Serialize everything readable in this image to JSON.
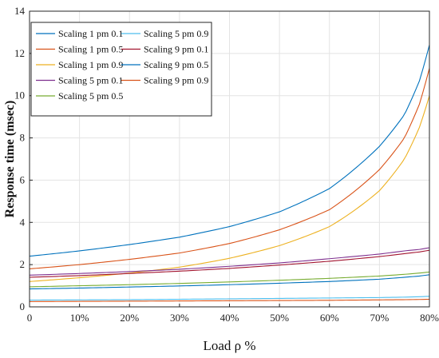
{
  "chart_data": {
    "type": "line",
    "xlabel": "Load ρ %",
    "ylabel": "Response time (msec)",
    "xlim": [
      0,
      80
    ],
    "ylim": [
      0,
      14
    ],
    "grid": true,
    "legend_position": "top-left",
    "x_ticks": [
      0,
      10,
      20,
      30,
      40,
      50,
      60,
      70,
      80
    ],
    "x_tick_labels": [
      "0",
      "10%",
      "20%",
      "30%",
      "40%",
      "50%",
      "60%",
      "70%",
      "80%"
    ],
    "y_ticks": [
      0,
      2,
      4,
      6,
      8,
      10,
      12,
      14
    ],
    "y_tick_labels": [
      "0",
      "2",
      "4",
      "6",
      "8",
      "10",
      "12",
      "14"
    ],
    "x": [
      0,
      10,
      20,
      30,
      40,
      50,
      60,
      70,
      75,
      78,
      80
    ],
    "series": [
      {
        "name": "Scaling 1 pm 0.1",
        "color": "#0072BD",
        "values": [
          2.4,
          2.65,
          2.95,
          3.3,
          3.8,
          4.5,
          5.6,
          7.6,
          9.1,
          10.7,
          12.4
        ]
      },
      {
        "name": "Scaling 1 pm 0.5",
        "color": "#D95319",
        "values": [
          1.8,
          2.0,
          2.25,
          2.55,
          3.0,
          3.65,
          4.6,
          6.5,
          8.0,
          9.6,
          11.3
        ]
      },
      {
        "name": "Scaling 1 pm 0.9",
        "color": "#EDB120",
        "values": [
          1.2,
          1.38,
          1.6,
          1.88,
          2.3,
          2.9,
          3.8,
          5.5,
          7.0,
          8.5,
          10.0
        ]
      },
      {
        "name": "Scaling 5 pm 0.1",
        "color": "#7E2F8E",
        "values": [
          1.5,
          1.58,
          1.67,
          1.78,
          1.92,
          2.08,
          2.28,
          2.5,
          2.65,
          2.72,
          2.8
        ]
      },
      {
        "name": "Scaling 5 pm 0.5",
        "color": "#77AC30",
        "values": [
          0.95,
          1.0,
          1.05,
          1.11,
          1.18,
          1.26,
          1.35,
          1.46,
          1.54,
          1.6,
          1.65
        ]
      },
      {
        "name": "Scaling 5 pm 0.9",
        "color": "#4DBEEE",
        "values": [
          0.32,
          0.33,
          0.34,
          0.36,
          0.38,
          0.4,
          0.42,
          0.44,
          0.46,
          0.48,
          0.5
        ]
      },
      {
        "name": "Scaling 9 pm 0.1",
        "color": "#A2142F",
        "values": [
          1.4,
          1.48,
          1.58,
          1.69,
          1.82,
          1.98,
          2.16,
          2.38,
          2.52,
          2.6,
          2.68
        ]
      },
      {
        "name": "Scaling 9 pm 0.5",
        "color": "#0072BD",
        "values": [
          0.85,
          0.89,
          0.94,
          0.99,
          1.05,
          1.12,
          1.2,
          1.31,
          1.4,
          1.46,
          1.52
        ]
      },
      {
        "name": "Scaling 9 pm 0.9",
        "color": "#D95319",
        "values": [
          0.25,
          0.26,
          0.27,
          0.28,
          0.29,
          0.3,
          0.31,
          0.33,
          0.34,
          0.35,
          0.36
        ]
      }
    ]
  }
}
